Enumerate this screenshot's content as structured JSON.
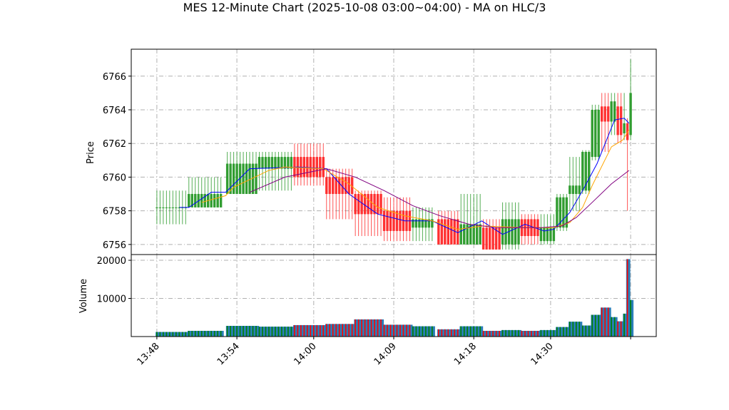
{
  "chart_data": {
    "type": "candlestick",
    "title": "MES 12-Minute Chart (2025-10-08 03:00~04:00) - MA on HLC/3",
    "price_panel": {
      "ylabel": "Price",
      "ylim": [
        6755.4,
        6767.6
      ],
      "yticks": [
        6756,
        6758,
        6760,
        6762,
        6764,
        6766
      ],
      "grid": true
    },
    "volume_panel": {
      "ylabel": "Volume",
      "ylim": [
        0,
        21500
      ],
      "yticks": [
        10000,
        20000
      ],
      "ytick_labels": [
        "10000",
        "20000"
      ],
      "grid": true
    },
    "xticks": [
      {
        "index": 0,
        "label": "13:48"
      },
      {
        "index": 25,
        "label": "13:54"
      },
      {
        "index": 49,
        "label": "14:00"
      },
      {
        "index": 74,
        "label": "14:09"
      },
      {
        "index": 99,
        "label": "14:18"
      },
      {
        "index": 123,
        "label": "14:30"
      },
      {
        "index": 148,
        "label": ""
      }
    ],
    "xlim": [
      -8,
      156
    ],
    "colors": {
      "up": "#2a9a2a",
      "down": "#ff2a2a",
      "volume_group": "#1f77b4",
      "ma_fast": "#0000ff",
      "ma_mid": "#ffa500",
      "ma_slow": "#800080"
    },
    "groups": [
      {
        "start": 0,
        "end": 10,
        "o": 6758.2,
        "h": 6759.2,
        "l": 6757.2,
        "c": 6758.2,
        "v": 1200
      },
      {
        "start": 10,
        "end": 21,
        "o": 6758.2,
        "h": 6760.0,
        "l": 6758.2,
        "c": 6759.0,
        "v": 1500
      },
      {
        "start": 22,
        "end": 32,
        "o": 6759.0,
        "h": 6761.5,
        "l": 6759.0,
        "c": 6760.8,
        "v": 2800
      },
      {
        "start": 32,
        "end": 43,
        "o": 6760.5,
        "h": 6761.5,
        "l": 6759.2,
        "c": 6761.2,
        "v": 2600
      },
      {
        "start": 43,
        "end": 53,
        "o": 6761.2,
        "h": 6762.0,
        "l": 6759.5,
        "c": 6760.0,
        "v": 3000
      },
      {
        "start": 53,
        "end": 62,
        "o": 6760.0,
        "h": 6760.5,
        "l": 6757.5,
        "c": 6759.0,
        "v": 3300
      },
      {
        "start": 62,
        "end": 71,
        "o": 6759.0,
        "h": 6759.2,
        "l": 6756.5,
        "c": 6757.8,
        "v": 4500
      },
      {
        "start": 71,
        "end": 80,
        "o": 6758.0,
        "h": 6758.8,
        "l": 6756.2,
        "c": 6756.8,
        "v": 3100
      },
      {
        "start": 80,
        "end": 87,
        "o": 6757.0,
        "h": 6758.2,
        "l": 6756.2,
        "c": 6757.5,
        "v": 2700
      },
      {
        "start": 88,
        "end": 95,
        "o": 6757.5,
        "h": 6758.0,
        "l": 6756.0,
        "c": 6756.0,
        "v": 1900
      },
      {
        "start": 95,
        "end": 102,
        "o": 6756.0,
        "h": 6759.0,
        "l": 6756.0,
        "c": 6757.2,
        "v": 2700
      },
      {
        "start": 102,
        "end": 108,
        "o": 6757.0,
        "h": 6757.5,
        "l": 6755.7,
        "c": 6755.7,
        "v": 1500
      },
      {
        "start": 108,
        "end": 114,
        "o": 6756.0,
        "h": 6758.5,
        "l": 6755.7,
        "c": 6757.5,
        "v": 1700
      },
      {
        "start": 114,
        "end": 120,
        "o": 6757.5,
        "h": 6757.8,
        "l": 6756.0,
        "c": 6756.5,
        "v": 1500
      },
      {
        "start": 120,
        "end": 125,
        "o": 6756.2,
        "h": 6757.8,
        "l": 6756.0,
        "c": 6757.0,
        "v": 1700
      },
      {
        "start": 125,
        "end": 129,
        "o": 6757.0,
        "h": 6759.0,
        "l": 6756.8,
        "c": 6758.8,
        "v": 2500
      },
      {
        "start": 129,
        "end": 133,
        "o": 6759.0,
        "h": 6761.2,
        "l": 6758.0,
        "c": 6759.5,
        "v": 3900
      },
      {
        "start": 133,
        "end": 136,
        "o": 6759.2,
        "h": 6761.6,
        "l": 6759.0,
        "c": 6761.5,
        "v": 2900
      },
      {
        "start": 136,
        "end": 139,
        "o": 6761.2,
        "h": 6764.3,
        "l": 6761.0,
        "c": 6764.0,
        "v": 5700
      },
      {
        "start": 139,
        "end": 142,
        "o": 6764.2,
        "h": 6765.0,
        "l": 6761.5,
        "c": 6763.3,
        "v": 7600
      },
      {
        "start": 142,
        "end": 144,
        "o": 6763.3,
        "h": 6765.0,
        "l": 6762.5,
        "c": 6764.5,
        "v": 5100
      },
      {
        "start": 144,
        "end": 146,
        "o": 6764.2,
        "h": 6765.0,
        "l": 6762.0,
        "c": 6762.5,
        "v": 4000
      },
      {
        "start": 146,
        "end": 147,
        "o": 6762.6,
        "h": 6765.0,
        "l": 6762.2,
        "c": 6763.2,
        "v": 6000
      },
      {
        "start": 147,
        "end": 148,
        "o": 6763.2,
        "h": 6763.5,
        "l": 6758.0,
        "c": 6762.2,
        "v": 20300
      },
      {
        "start": 148,
        "end": 149,
        "o": 6762.5,
        "h": 6767.0,
        "l": 6762.2,
        "c": 6765.0,
        "v": 9600
      }
    ],
    "ma_fast": [
      [
        7,
        6758.2
      ],
      [
        10,
        6758.2
      ],
      [
        17,
        6759.1
      ],
      [
        21.5,
        6759.1
      ],
      [
        29,
        6760.5
      ],
      [
        44,
        6760.6
      ],
      [
        53,
        6760.5
      ],
      [
        60,
        6759.0
      ],
      [
        69,
        6757.8
      ],
      [
        77.5,
        6757.4
      ],
      [
        86,
        6757.4
      ],
      [
        94,
        6756.7
      ],
      [
        101.5,
        6757.4
      ],
      [
        108,
        6756.6
      ],
      [
        115,
        6757.2
      ],
      [
        121,
        6756.8
      ],
      [
        124,
        6756.9
      ],
      [
        129,
        6757.9
      ],
      [
        133,
        6759.2
      ],
      [
        137.5,
        6760.8
      ],
      [
        143,
        6763.4
      ],
      [
        146,
        6763.5
      ],
      [
        147.5,
        6763.2
      ]
    ],
    "ma_mid": [
      [
        14,
        6758.5
      ],
      [
        21.5,
        6758.9
      ],
      [
        24,
        6759.4
      ],
      [
        35,
        6760.4
      ],
      [
        40,
        6760.6
      ],
      [
        52,
        6760.5
      ],
      [
        60,
        6759.6
      ],
      [
        69,
        6758.2
      ],
      [
        77.5,
        6757.7
      ],
      [
        86,
        6757.4
      ],
      [
        94,
        6756.9
      ],
      [
        102,
        6757.1
      ],
      [
        115,
        6757.0
      ],
      [
        124,
        6757.0
      ],
      [
        129,
        6757.3
      ],
      [
        133,
        6758.2
      ],
      [
        136,
        6759.5
      ],
      [
        142,
        6761.8
      ],
      [
        145.5,
        6762.2
      ],
      [
        147.5,
        6762.8
      ]
    ],
    "ma_slow": [
      [
        29,
        6759.1
      ],
      [
        40,
        6760.0
      ],
      [
        53,
        6760.5
      ],
      [
        62,
        6760.0
      ],
      [
        71,
        6759.2
      ],
      [
        80,
        6758.3
      ],
      [
        88.5,
        6757.7
      ],
      [
        97.5,
        6757.2
      ],
      [
        106,
        6757.0
      ],
      [
        120,
        6757.0
      ],
      [
        126.5,
        6757.1
      ],
      [
        131,
        6757.6
      ],
      [
        136,
        6758.5
      ],
      [
        142,
        6759.6
      ],
      [
        147.5,
        6760.4
      ]
    ]
  }
}
